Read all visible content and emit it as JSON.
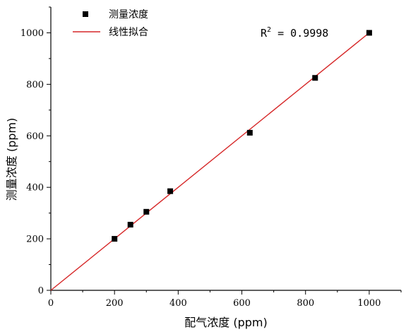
{
  "chart_data": {
    "type": "scatter",
    "xlabel": "配气浓度 (ppm)",
    "ylabel": "测量浓度 (ppm)",
    "xlim": [
      0,
      1100
    ],
    "ylim": [
      0,
      1100
    ],
    "x_ticks": [
      0,
      200,
      400,
      600,
      800,
      1000
    ],
    "y_ticks": [
      0,
      200,
      400,
      600,
      800,
      1000
    ],
    "x_minor_ticks": [
      100,
      300,
      500,
      700,
      900,
      1100
    ],
    "y_minor_ticks": [
      100,
      300,
      500,
      700,
      900,
      1100
    ],
    "grid": false,
    "legend_position": "top-left",
    "series": [
      {
        "name": "测量浓度",
        "kind": "scatter",
        "marker": "square",
        "color": "#000000",
        "points": [
          {
            "x": 200,
            "y": 200
          },
          {
            "x": 250,
            "y": 255
          },
          {
            "x": 300,
            "y": 305
          },
          {
            "x": 375,
            "y": 385
          },
          {
            "x": 625,
            "y": 612
          },
          {
            "x": 830,
            "y": 825
          },
          {
            "x": 1000,
            "y": 1000
          }
        ]
      },
      {
        "name": "线性拟合",
        "kind": "line",
        "color": "#d62728",
        "points": [
          {
            "x": 0,
            "y": 0
          },
          {
            "x": 1000,
            "y": 1000
          }
        ]
      }
    ],
    "annotation": {
      "base": "R",
      "sup": "2",
      "rest": " = 0.9998"
    }
  }
}
